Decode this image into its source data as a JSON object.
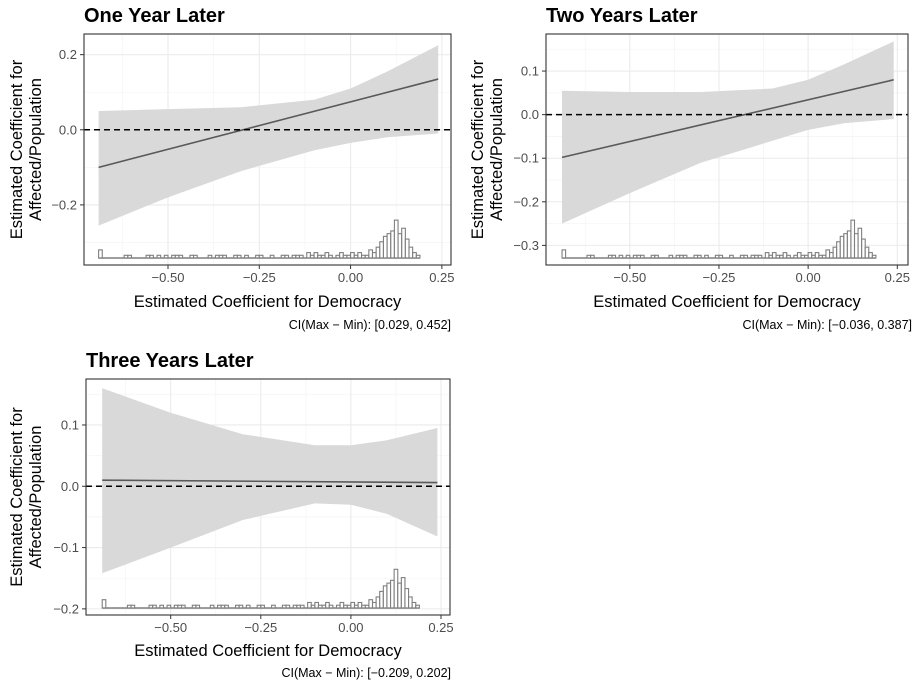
{
  "colors": {
    "band": "#d9d9d9",
    "line": "#595959",
    "hist_stroke": "#7f7f7f",
    "grid_major": "#ebebeb",
    "grid_minor": "#f5f5f5",
    "panel_border": "#333333",
    "reference": "#000000"
  },
  "chart_data": [
    {
      "type": "line",
      "title": "One Year Later",
      "xlabel": "Estimated Coefficient for Democracy",
      "ylabel_lines": [
        "Estimated Coefficient for",
        "Affected/Population"
      ],
      "caption": "CI(Max − Min): [0.029, 0.452]",
      "xlim": [
        -0.73,
        0.275
      ],
      "ylim": [
        -0.36,
        0.255
      ],
      "x_ticks": [
        -0.5,
        -0.25,
        0.0,
        0.25
      ],
      "x_tick_labels": [
        "−0.50",
        "−0.25",
        "0.00",
        "0.25"
      ],
      "y_ticks": [
        -0.2,
        0.0,
        0.2
      ],
      "y_tick_labels": [
        "−0.2",
        "0.0",
        "0.2"
      ],
      "reference_line_y": 0.0,
      "grid": true,
      "series": [
        {
          "kind": "estimate",
          "x": [
            -0.69,
            0.24
          ],
          "y": [
            -0.1,
            0.135
          ]
        },
        {
          "kind": "confidence-band",
          "x": [
            -0.69,
            -0.5,
            -0.3,
            -0.1,
            0.0,
            0.1,
            0.24
          ],
          "lower": [
            -0.255,
            -0.18,
            -0.11,
            -0.055,
            -0.035,
            -0.02,
            -0.01
          ],
          "upper": [
            0.05,
            0.055,
            0.06,
            0.08,
            0.11,
            0.155,
            0.225
          ]
        }
      ],
      "histogram": {
        "x_start": -0.69,
        "bin_width": 0.01,
        "counts": [
          3,
          0,
          0,
          0,
          0,
          0,
          0,
          1,
          1,
          0,
          0,
          0,
          0,
          1,
          1,
          0,
          1,
          0,
          1,
          0,
          1,
          1,
          1,
          0,
          0,
          1,
          1,
          0,
          0,
          0,
          1,
          0,
          1,
          1,
          1,
          0,
          0,
          1,
          1,
          0,
          1,
          0,
          0,
          1,
          1,
          0,
          0,
          1,
          0,
          0,
          1,
          1,
          0,
          1,
          1,
          1,
          0,
          2,
          1,
          2,
          1,
          1,
          2,
          1,
          0,
          1,
          2,
          1,
          1,
          2,
          1,
          2,
          1,
          1,
          3,
          2,
          4,
          6,
          8,
          9,
          10,
          14,
          9,
          11,
          7,
          4,
          2,
          1
        ],
        "max_count": 14
      }
    },
    {
      "type": "line",
      "title": "Two Years Later",
      "xlabel": "Estimated Coefficient for Democracy",
      "ylabel_lines": [
        "Estimated Coefficient for",
        "Affected/Population"
      ],
      "caption": "CI(Max − Min): [−0.036, 0.387]",
      "xlim": [
        -0.735,
        0.28
      ],
      "ylim": [
        -0.345,
        0.185
      ],
      "x_ticks": [
        -0.5,
        -0.25,
        0.0,
        0.25
      ],
      "x_tick_labels": [
        "−0.50",
        "−0.25",
        "0.00",
        "0.25"
      ],
      "y_ticks": [
        -0.3,
        -0.2,
        -0.1,
        0.0,
        0.1
      ],
      "y_tick_labels": [
        "−0.3",
        "−0.2",
        "−0.1",
        "0.0",
        "0.1"
      ],
      "reference_line_y": 0.0,
      "grid": true,
      "series": [
        {
          "kind": "estimate",
          "x": [
            -0.69,
            0.24
          ],
          "y": [
            -0.098,
            0.08
          ]
        },
        {
          "kind": "confidence-band",
          "x": [
            -0.69,
            -0.5,
            -0.3,
            -0.1,
            0.0,
            0.1,
            0.24
          ],
          "lower": [
            -0.25,
            -0.18,
            -0.11,
            -0.06,
            -0.035,
            -0.02,
            -0.01
          ],
          "upper": [
            0.055,
            0.052,
            0.052,
            0.06,
            0.08,
            0.115,
            0.168
          ]
        }
      ],
      "histogram": {
        "x_start": -0.69,
        "bin_width": 0.01,
        "counts": [
          3,
          0,
          0,
          0,
          0,
          0,
          0,
          1,
          1,
          0,
          0,
          0,
          0,
          1,
          1,
          0,
          1,
          0,
          1,
          0,
          1,
          1,
          1,
          0,
          0,
          1,
          1,
          0,
          0,
          0,
          1,
          0,
          1,
          1,
          1,
          0,
          0,
          1,
          1,
          0,
          1,
          0,
          0,
          1,
          1,
          0,
          0,
          1,
          0,
          0,
          1,
          1,
          0,
          1,
          1,
          1,
          0,
          2,
          1,
          2,
          1,
          1,
          2,
          1,
          0,
          1,
          2,
          1,
          1,
          2,
          1,
          2,
          1,
          1,
          3,
          2,
          4,
          6,
          8,
          9,
          10,
          14,
          9,
          11,
          7,
          4,
          2,
          1
        ],
        "max_count": 14
      }
    },
    {
      "type": "line",
      "title": "Three Years Later",
      "xlabel": "Estimated Coefficient for Democracy",
      "ylabel_lines": [
        "Estimated Coefficient for",
        "Affected/Population"
      ],
      "caption": "CI(Max − Min): [−0.209, 0.202]",
      "xlim": [
        -0.735,
        0.275
      ],
      "ylim": [
        -0.21,
        0.175
      ],
      "x_ticks": [
        -0.5,
        -0.25,
        0.0,
        0.25
      ],
      "x_tick_labels": [
        "−0.50",
        "−0.25",
        "0.00",
        "0.25"
      ],
      "y_ticks": [
        -0.2,
        -0.1,
        0.0,
        0.1
      ],
      "y_tick_labels": [
        "−0.2",
        "−0.1",
        "0.0",
        "0.1"
      ],
      "reference_line_y": 0.0,
      "grid": true,
      "series": [
        {
          "kind": "estimate",
          "x": [
            -0.69,
            0.24
          ],
          "y": [
            0.01,
            0.006
          ]
        },
        {
          "kind": "confidence-band",
          "x": [
            -0.69,
            -0.5,
            -0.3,
            -0.1,
            0.0,
            0.1,
            0.24
          ],
          "lower": [
            -0.142,
            -0.1,
            -0.055,
            -0.028,
            -0.03,
            -0.045,
            -0.082
          ],
          "upper": [
            0.16,
            0.12,
            0.085,
            0.067,
            0.067,
            0.075,
            0.095
          ]
        }
      ],
      "histogram": {
        "x_start": -0.69,
        "bin_width": 0.01,
        "counts": [
          3,
          0,
          0,
          0,
          0,
          0,
          0,
          1,
          1,
          0,
          0,
          0,
          0,
          1,
          1,
          0,
          1,
          0,
          1,
          0,
          1,
          1,
          1,
          0,
          0,
          1,
          1,
          0,
          0,
          0,
          1,
          0,
          1,
          1,
          1,
          0,
          0,
          1,
          1,
          0,
          1,
          0,
          0,
          1,
          1,
          0,
          0,
          1,
          0,
          0,
          1,
          1,
          0,
          1,
          1,
          1,
          0,
          2,
          1,
          2,
          1,
          1,
          2,
          1,
          0,
          1,
          2,
          1,
          1,
          2,
          1,
          2,
          1,
          1,
          3,
          2,
          4,
          6,
          8,
          9,
          10,
          14,
          9,
          11,
          7,
          4,
          2,
          1
        ],
        "max_count": 14
      }
    }
  ]
}
